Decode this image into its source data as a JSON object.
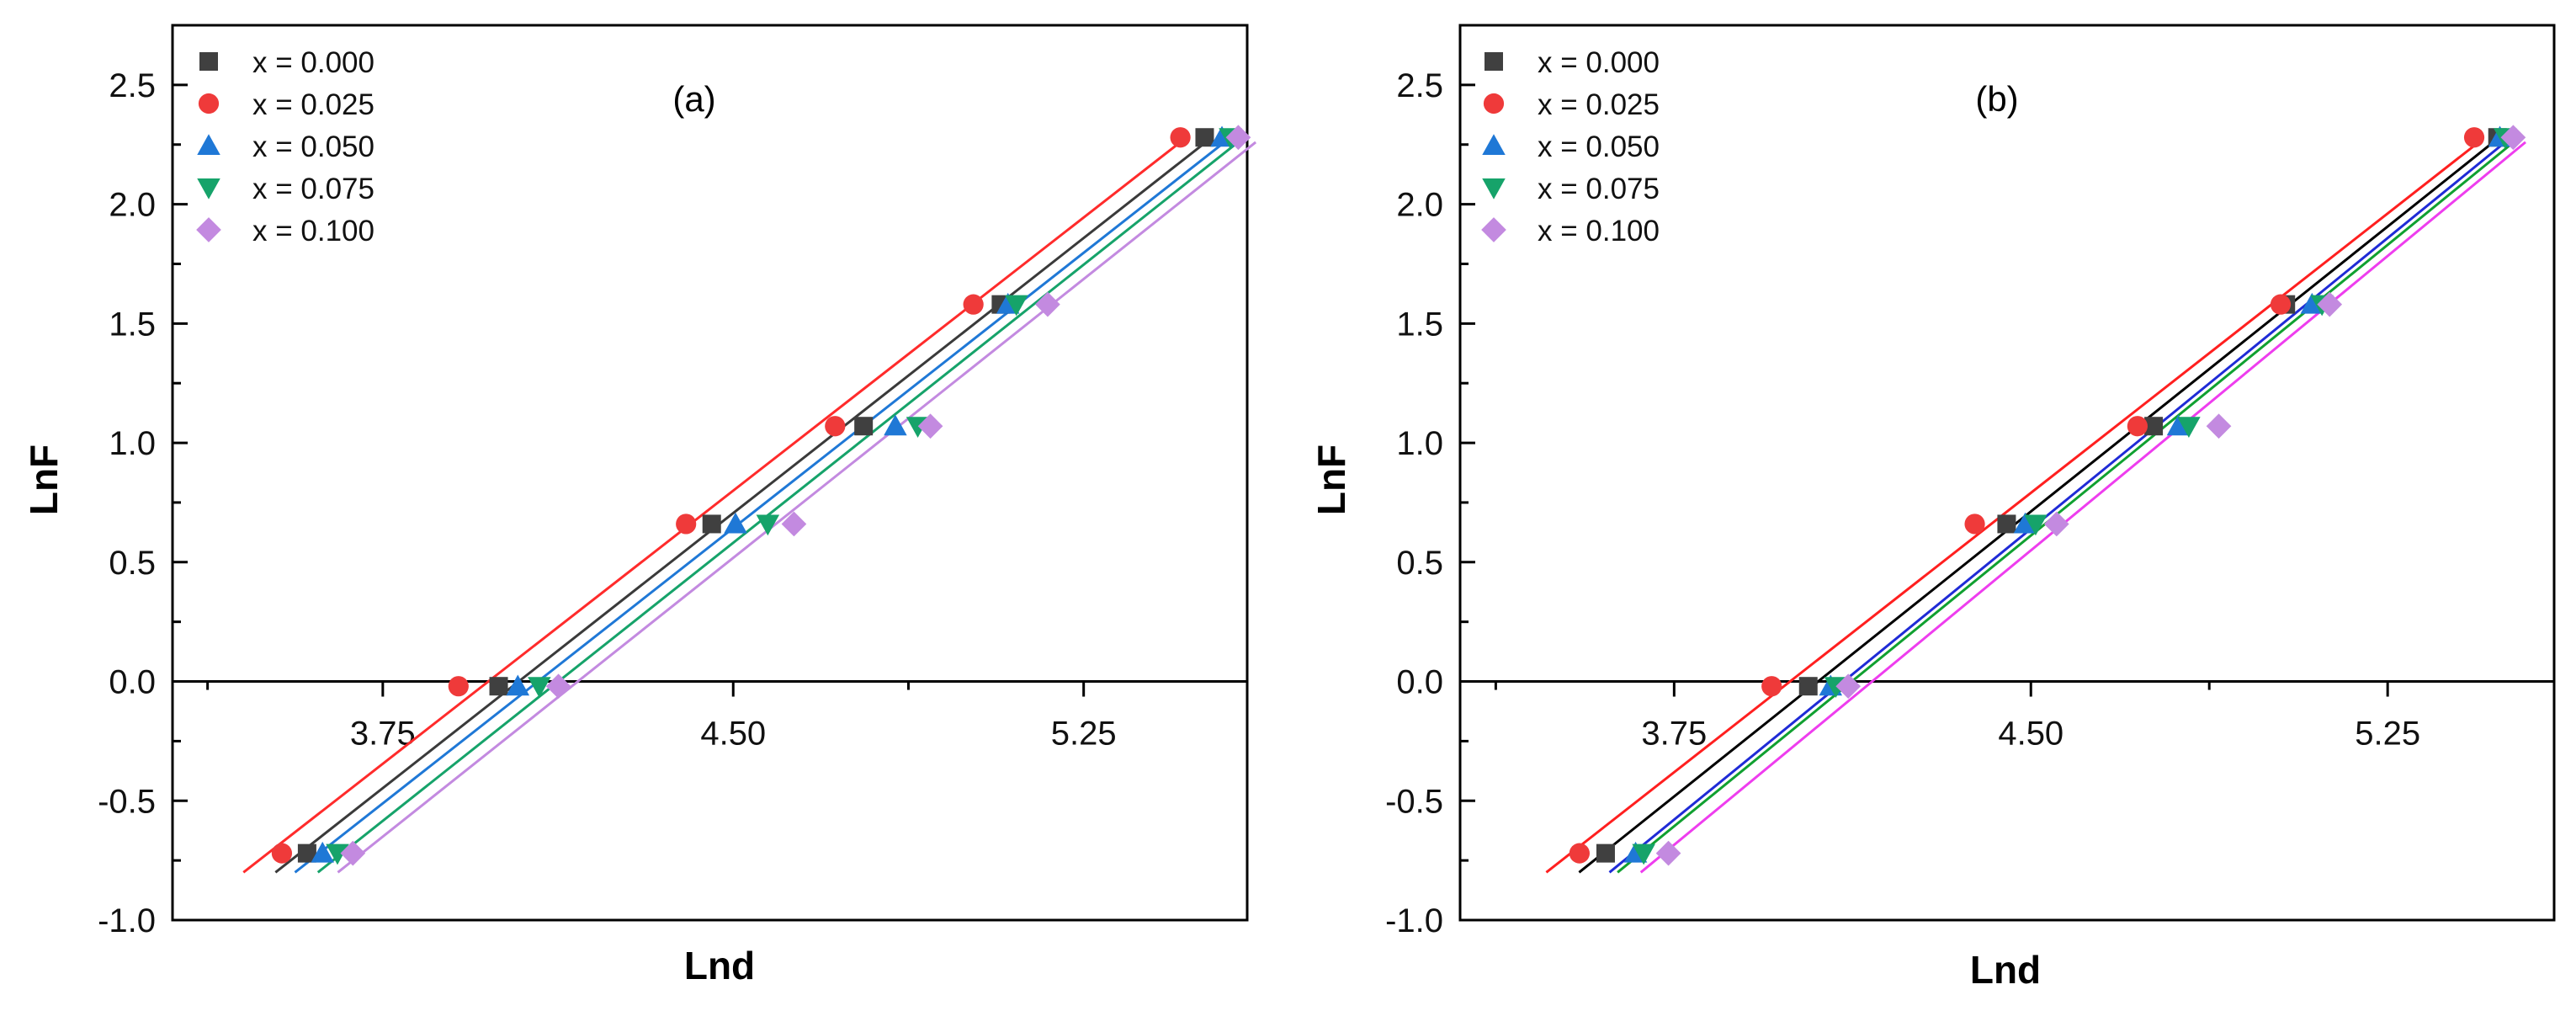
{
  "colors": {
    "x000": "#404040",
    "x025": "#ef3a3a",
    "x050": "#1f78d6",
    "x075": "#16a36a",
    "x100": "#c38ae0",
    "fit_a": [
      "#3a3a3a",
      "#ff2b2b",
      "#1f78d6",
      "#16a36a",
      "#c38ae0"
    ],
    "fit_b": [
      "#000000",
      "#ff1f1f",
      "#1f2bd6",
      "#10a030",
      "#ee3dee"
    ]
  },
  "chart_data": [
    {
      "type": "scatter",
      "title": "(a)",
      "xlabel": "Lnd",
      "ylabel": "LnF",
      "xlim": [
        3.3,
        5.6
      ],
      "ylim": [
        -1.0,
        2.75
      ],
      "xticks": [
        "3.75",
        "4.50",
        "5.25"
      ],
      "yticks": [
        "2.5",
        "2.0",
        "1.5",
        "1.0",
        "0.5",
        "0.0",
        "-0.5",
        "-1.0"
      ],
      "legend_position": "top-left",
      "series": [
        {
          "name": "x = 0.000",
          "marker": "square",
          "x": [
            3.588,
            3.998,
            4.454,
            4.779,
            5.073,
            5.509
          ],
          "y": [
            -0.72,
            -0.02,
            0.66,
            1.07,
            1.58,
            2.28
          ]
        },
        {
          "name": "x = 0.025",
          "marker": "circle",
          "x": [
            3.534,
            3.912,
            4.399,
            4.718,
            5.014,
            5.457
          ],
          "y": [
            -0.72,
            -0.02,
            0.66,
            1.07,
            1.58,
            2.28
          ]
        },
        {
          "name": "x = 0.050",
          "marker": "triangle-up",
          "x": [
            3.621,
            4.039,
            4.505,
            4.847,
            5.088,
            5.546
          ],
          "y": [
            -0.72,
            -0.02,
            0.66,
            1.07,
            1.58,
            2.28
          ]
        },
        {
          "name": "x = 0.075",
          "marker": "triangle-down",
          "x": [
            3.653,
            4.085,
            4.574,
            4.895,
            5.106,
            5.564
          ],
          "y": [
            -0.72,
            -0.02,
            0.66,
            1.07,
            1.58,
            2.28
          ]
        },
        {
          "name": "x = 0.100",
          "marker": "diamond",
          "x": [
            3.686,
            4.126,
            4.63,
            4.922,
            5.173,
            5.581
          ],
          "y": [
            -0.72,
            -0.02,
            0.66,
            1.07,
            1.58,
            2.28
          ]
        }
      ]
    },
    {
      "type": "scatter",
      "title": "(b)",
      "xlabel": "Lnd",
      "ylabel": "LnF",
      "xlim": [
        3.3,
        5.6
      ],
      "ylim": [
        -1.0,
        2.75
      ],
      "xticks": [
        "3.75",
        "4.50",
        "5.25"
      ],
      "yticks": [
        "2.5",
        "2.0",
        "1.5",
        "1.0",
        "0.5",
        "0.0",
        "-0.5",
        "-1.0"
      ],
      "legend_position": "top-left",
      "series": [
        {
          "name": "x = 0.000",
          "marker": "square",
          "x": [
            3.606,
            4.032,
            4.449,
            4.758,
            5.036,
            5.481
          ],
          "y": [
            -0.72,
            -0.02,
            0.66,
            1.07,
            1.58,
            2.28
          ]
        },
        {
          "name": "x = 0.025",
          "marker": "circle",
          "x": [
            3.551,
            3.955,
            4.382,
            4.724,
            5.025,
            5.432
          ],
          "y": [
            -0.72,
            -0.02,
            0.66,
            1.07,
            1.58,
            2.28
          ]
        },
        {
          "name": "x = 0.050",
          "marker": "triangle-up",
          "x": [
            3.669,
            4.079,
            4.488,
            4.81,
            5.091,
            5.486
          ],
          "y": [
            -0.72,
            -0.02,
            0.66,
            1.07,
            1.58,
            2.28
          ]
        },
        {
          "name": "x = 0.075",
          "marker": "triangle-down",
          "x": [
            3.686,
            4.09,
            4.51,
            4.832,
            5.112,
            5.497
          ],
          "y": [
            -0.72,
            -0.02,
            0.66,
            1.07,
            1.58,
            2.28
          ]
        },
        {
          "name": "x = 0.100",
          "marker": "diamond",
          "x": [
            3.738,
            4.116,
            4.554,
            4.895,
            5.128,
            5.514
          ],
          "y": [
            -0.72,
            -0.02,
            0.66,
            1.07,
            1.58,
            2.28
          ]
        }
      ]
    }
  ]
}
